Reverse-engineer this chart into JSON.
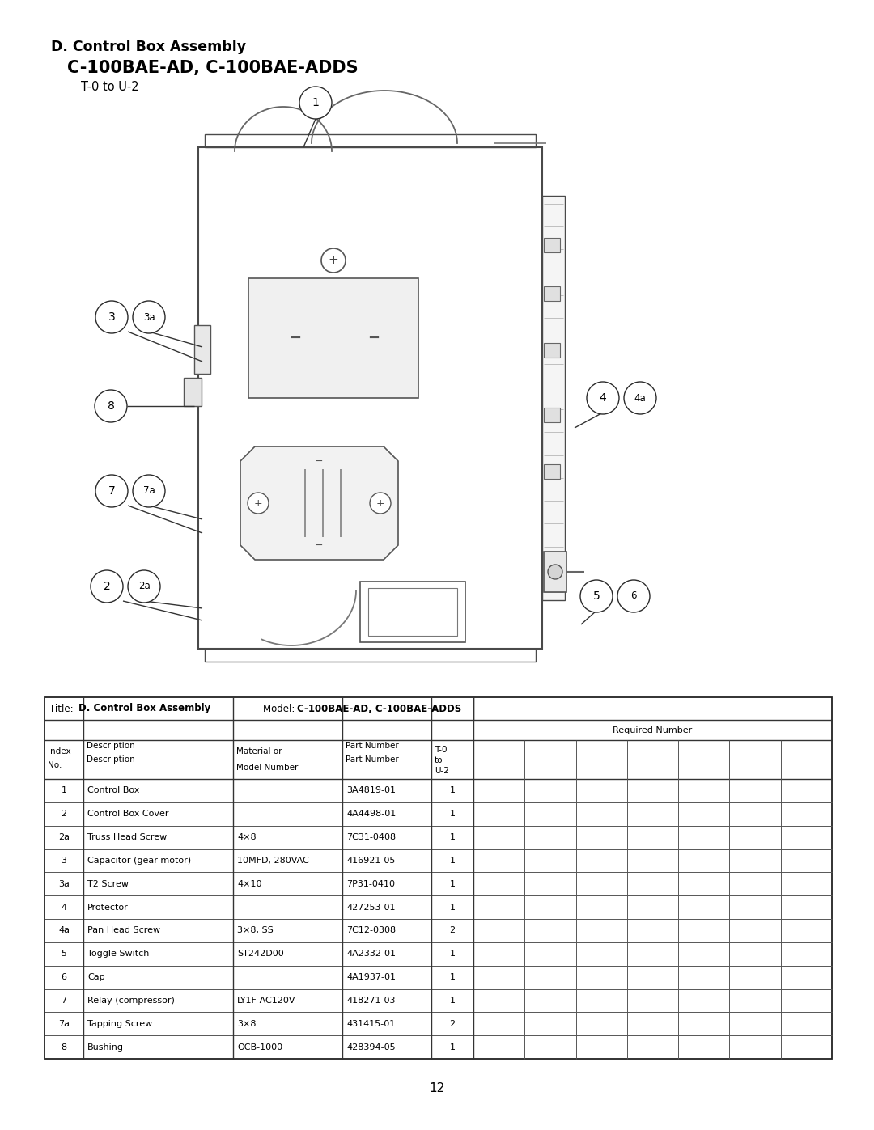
{
  "title_line1": "D. Control Box Assembly",
  "title_line2": "C-100BAE-AD, C-100BAE-ADDS",
  "title_line3": "T-0 to U-2",
  "page_number": "12",
  "table_title_value": "D. Control Box Assembly",
  "table_model_value": "C-100BAE-AD, C-100BAE-ADDS",
  "table_rows": [
    [
      "1",
      "Control Box",
      "",
      "3A4819-01",
      "1"
    ],
    [
      "2",
      "Control Box Cover",
      "",
      "4A4498-01",
      "1"
    ],
    [
      "2a",
      "Truss Head Screw",
      "4×8",
      "7C31-0408",
      "1"
    ],
    [
      "3",
      "Capacitor (gear motor)",
      "10MFD, 280VAC",
      "416921-05",
      "1"
    ],
    [
      "3a",
      "T2 Screw",
      "4×10",
      "7P31-0410",
      "1"
    ],
    [
      "4",
      "Protector",
      "",
      "427253-01",
      "1"
    ],
    [
      "4a",
      "Pan Head Screw",
      "3×8, SS",
      "7C12-0308",
      "2"
    ],
    [
      "5",
      "Toggle Switch",
      "ST242D00",
      "4A2332-01",
      "1"
    ],
    [
      "6",
      "Cap",
      "",
      "4A1937-01",
      "1"
    ],
    [
      "7",
      "Relay (compressor)",
      "LY1F-AC120V",
      "418271-03",
      "1"
    ],
    [
      "7a",
      "Tapping Screw",
      "3×8",
      "431415-01",
      "2"
    ],
    [
      "8",
      "Bushing",
      "OCB-1000",
      "428394-05",
      "1"
    ]
  ],
  "extra_cols": 7,
  "bg_color": "#ffffff",
  "line_color": "#000000"
}
